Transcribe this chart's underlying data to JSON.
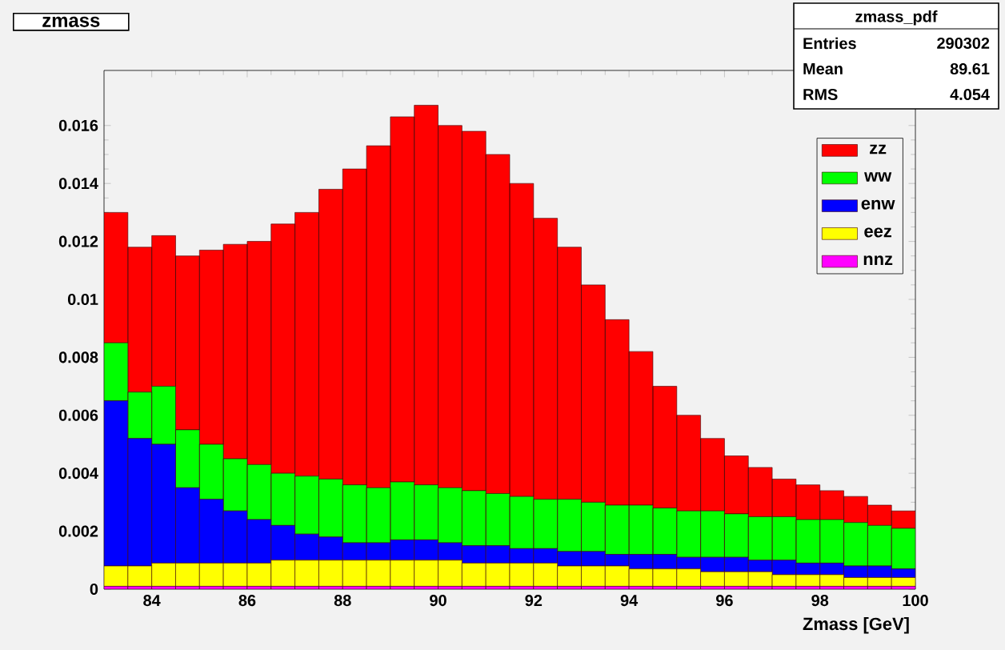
{
  "chart_data": {
    "type": "bar",
    "title": "zmass",
    "xlabel": "Zmass [GeV]",
    "x": [
      83.25,
      83.75,
      84.25,
      84.75,
      85.25,
      85.75,
      86.25,
      86.75,
      87.25,
      87.75,
      88.25,
      88.75,
      89.25,
      89.75,
      90.25,
      90.75,
      91.25,
      91.75,
      92.25,
      92.75,
      93.25,
      93.75,
      94.25,
      94.75,
      95.25,
      95.75,
      96.25,
      96.75,
      97.25,
      97.75,
      98.25,
      98.75,
      99.25,
      99.75
    ],
    "stacked": true,
    "series": [
      {
        "name": "nnz",
        "color": "#ff00ff",
        "values": [
          0.0001,
          0.0001,
          0.0001,
          0.0001,
          0.0001,
          0.0001,
          0.0001,
          0.0001,
          0.0001,
          0.0001,
          0.0001,
          0.0001,
          0.0001,
          0.0001,
          0.0001,
          0.0001,
          0.0001,
          0.0001,
          0.0001,
          0.0001,
          0.0001,
          0.0001,
          0.0001,
          0.0001,
          0.0001,
          0.0001,
          0.0001,
          0.0001,
          0.0001,
          0.0001,
          0.0001,
          0.0001,
          0.0001,
          0.0001
        ]
      },
      {
        "name": "eez",
        "color": "#ffff00",
        "values": [
          0.0007,
          0.0007,
          0.0008,
          0.0008,
          0.0008,
          0.0008,
          0.0008,
          0.0009,
          0.0009,
          0.0009,
          0.0009,
          0.0009,
          0.0009,
          0.0009,
          0.0009,
          0.0008,
          0.0008,
          0.0008,
          0.0008,
          0.0007,
          0.0007,
          0.0007,
          0.0006,
          0.0006,
          0.0006,
          0.0005,
          0.0005,
          0.0005,
          0.0004,
          0.0004,
          0.0004,
          0.0003,
          0.0003,
          0.0003
        ]
      },
      {
        "name": "enw",
        "color": "#0000ff",
        "values": [
          0.0057,
          0.0044,
          0.0041,
          0.0026,
          0.0022,
          0.0018,
          0.0015,
          0.0012,
          0.0009,
          0.0008,
          0.0006,
          0.0006,
          0.0007,
          0.0007,
          0.0006,
          0.0006,
          0.0006,
          0.0005,
          0.0005,
          0.0005,
          0.0005,
          0.0004,
          0.0005,
          0.0005,
          0.0004,
          0.0005,
          0.0005,
          0.0004,
          0.0005,
          0.0004,
          0.0004,
          0.0004,
          0.0004,
          0.0003
        ]
      },
      {
        "name": "ww",
        "color": "#00ff00",
        "values": [
          0.002,
          0.0016,
          0.002,
          0.002,
          0.0019,
          0.0018,
          0.0019,
          0.0018,
          0.002,
          0.002,
          0.002,
          0.0019,
          0.002,
          0.0019,
          0.0019,
          0.0019,
          0.0018,
          0.0018,
          0.0017,
          0.0018,
          0.0017,
          0.0017,
          0.0017,
          0.0016,
          0.0016,
          0.0016,
          0.0015,
          0.0015,
          0.0015,
          0.0015,
          0.0015,
          0.0015,
          0.0014,
          0.0014
        ]
      },
      {
        "name": "zz",
        "color": "#ff0000",
        "values": [
          0.0045,
          0.005,
          0.0052,
          0.006,
          0.0067,
          0.0074,
          0.0077,
          0.0086,
          0.0091,
          0.01,
          0.0109,
          0.0118,
          0.0126,
          0.0131,
          0.0125,
          0.0124,
          0.0117,
          0.0108,
          0.0097,
          0.0087,
          0.0075,
          0.0064,
          0.0053,
          0.0042,
          0.0033,
          0.0025,
          0.002,
          0.0017,
          0.0013,
          0.0012,
          0.001,
          0.0009,
          0.0007,
          0.0006
        ]
      }
    ],
    "xlim": [
      83,
      100
    ],
    "ylim": [
      0,
      0.0179
    ],
    "xticks": [
      84,
      86,
      88,
      90,
      92,
      94,
      96,
      98,
      100
    ],
    "yticks": [
      0,
      0.002,
      0.004,
      0.006,
      0.008,
      0.01,
      0.012,
      0.014,
      0.016
    ],
    "legend": "top right",
    "annotations": [
      "zmass_pdf",
      "Entries",
      "290302",
      "Mean",
      "89.61",
      "RMS",
      "4.054"
    ]
  }
}
